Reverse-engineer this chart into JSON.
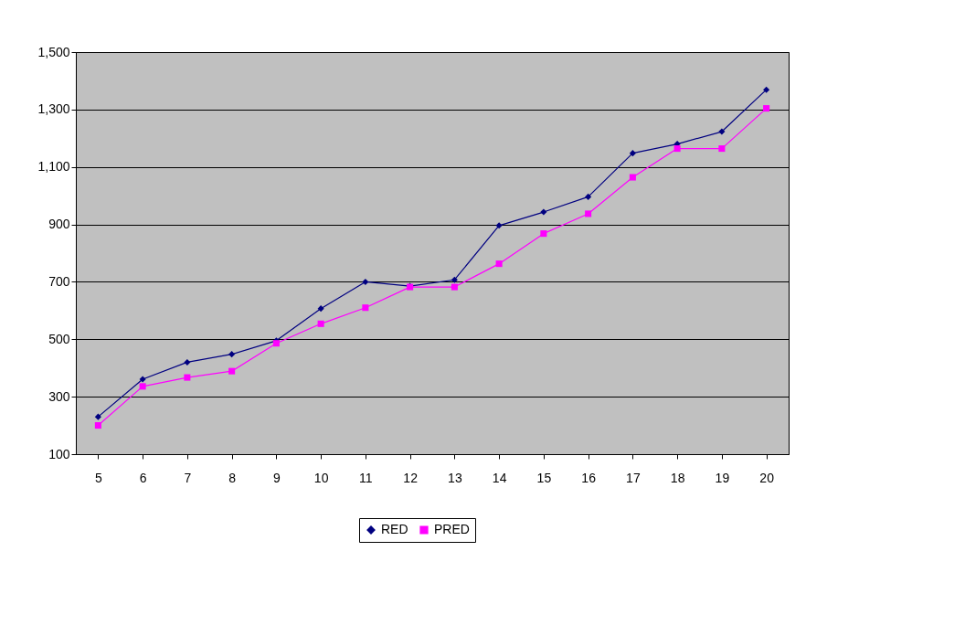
{
  "chart_data": {
    "type": "line",
    "categories": [
      "5",
      "6",
      "7",
      "8",
      "9",
      "10",
      "11",
      "12",
      "13",
      "14",
      "15",
      "16",
      "17",
      "18",
      "19",
      "20"
    ],
    "series": [
      {
        "name": "RED",
        "color": "#000080",
        "marker": "diamond",
        "values": [
          230,
          361,
          420,
          448,
          495,
          607,
          700,
          685,
          707,
          896,
          943,
          996,
          1148,
          1180,
          1223,
          1369
        ]
      },
      {
        "name": "PRED",
        "color": "#ff00ff",
        "marker": "square",
        "values": [
          200,
          336,
          367,
          389,
          486,
          554,
          610,
          682,
          682,
          763,
          868,
          937,
          1064,
          1164,
          1164,
          1304
        ]
      }
    ],
    "ylim": [
      100,
      1500
    ],
    "yticks": [
      {
        "value": 100,
        "label": "100"
      },
      {
        "value": 300,
        "label": "300"
      },
      {
        "value": 500,
        "label": "500"
      },
      {
        "value": 700,
        "label": "700"
      },
      {
        "value": 900,
        "label": "900"
      },
      {
        "value": 1100,
        "label": "1,100"
      },
      {
        "value": 1300,
        "label": "1,300"
      },
      {
        "value": 1500,
        "label": "1,500"
      }
    ],
    "grid": "y",
    "legend": "bottom",
    "line_style": "solid"
  }
}
